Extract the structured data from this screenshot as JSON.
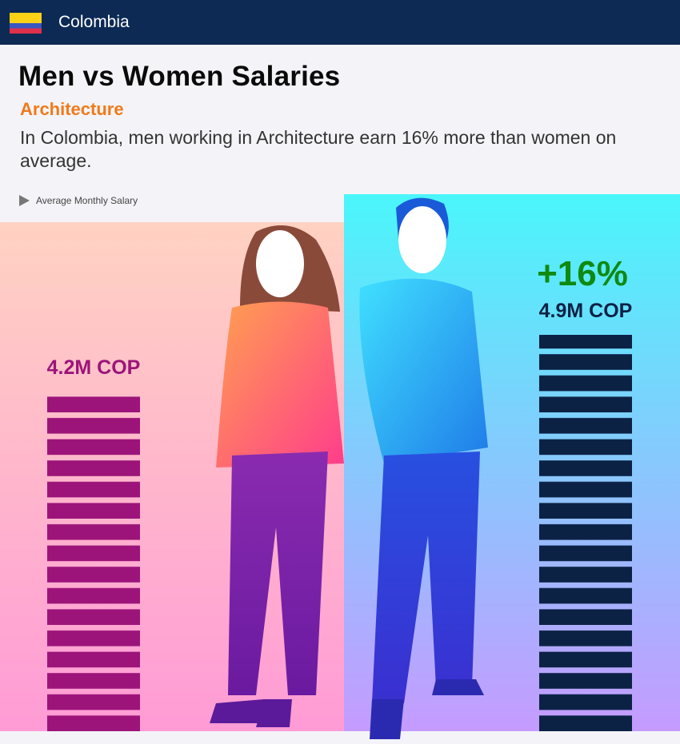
{
  "header": {
    "country": "Colombia"
  },
  "chart_data": {
    "type": "bar",
    "title": "Men vs Women Salaries",
    "subtitle": "Architecture",
    "description": "In Colombia, men working in Architecture earn 16% more than women on average.",
    "legend": "Average Monthly Salary",
    "annotation": "+16%",
    "values": [
      4200000,
      4900000
    ],
    "value_labels": [
      "4.2M COP",
      "4.9M COP"
    ],
    "colors": [
      "#9c147a",
      "#0b2245"
    ],
    "annotation_color": "#0f8a10"
  }
}
